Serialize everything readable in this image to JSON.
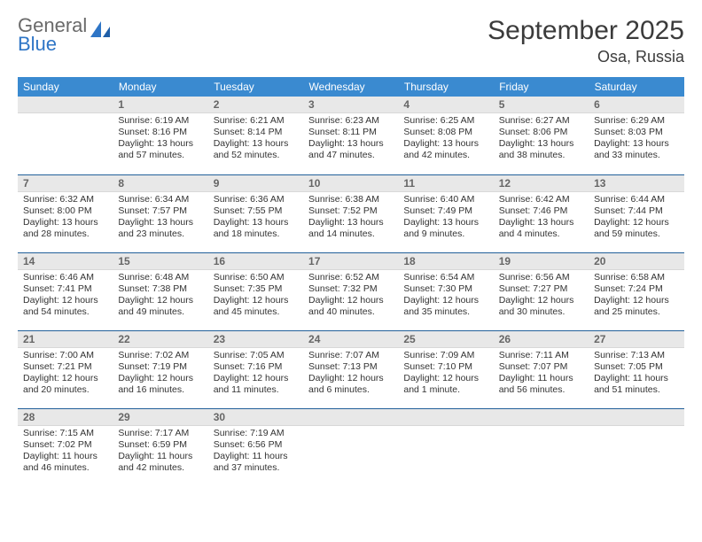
{
  "brand": {
    "line1": "General",
    "line2": "Blue",
    "color_gray": "#6a6a6a",
    "color_blue": "#2e75c6"
  },
  "title": "September 2025",
  "location": "Osa, Russia",
  "header_bg": "#3a8ad0",
  "header_text_color": "#ffffff",
  "daynum_bg": "#e8e8e8",
  "daynum_color": "#666666",
  "rule_color": "#22609a",
  "body_text_color": "#333333",
  "font_family": "Arial, Helvetica, sans-serif",
  "daynum_fontsize": 12,
  "body_fontsize": 10.5,
  "weekdays": [
    "Sunday",
    "Monday",
    "Tuesday",
    "Wednesday",
    "Thursday",
    "Friday",
    "Saturday"
  ],
  "weeks": [
    [
      null,
      {
        "n": "1",
        "sr": "Sunrise: 6:19 AM",
        "ss": "Sunset: 8:16 PM",
        "dl": "Daylight: 13 hours and 57 minutes."
      },
      {
        "n": "2",
        "sr": "Sunrise: 6:21 AM",
        "ss": "Sunset: 8:14 PM",
        "dl": "Daylight: 13 hours and 52 minutes."
      },
      {
        "n": "3",
        "sr": "Sunrise: 6:23 AM",
        "ss": "Sunset: 8:11 PM",
        "dl": "Daylight: 13 hours and 47 minutes."
      },
      {
        "n": "4",
        "sr": "Sunrise: 6:25 AM",
        "ss": "Sunset: 8:08 PM",
        "dl": "Daylight: 13 hours and 42 minutes."
      },
      {
        "n": "5",
        "sr": "Sunrise: 6:27 AM",
        "ss": "Sunset: 8:06 PM",
        "dl": "Daylight: 13 hours and 38 minutes."
      },
      {
        "n": "6",
        "sr": "Sunrise: 6:29 AM",
        "ss": "Sunset: 8:03 PM",
        "dl": "Daylight: 13 hours and 33 minutes."
      }
    ],
    [
      {
        "n": "7",
        "sr": "Sunrise: 6:32 AM",
        "ss": "Sunset: 8:00 PM",
        "dl": "Daylight: 13 hours and 28 minutes."
      },
      {
        "n": "8",
        "sr": "Sunrise: 6:34 AM",
        "ss": "Sunset: 7:57 PM",
        "dl": "Daylight: 13 hours and 23 minutes."
      },
      {
        "n": "9",
        "sr": "Sunrise: 6:36 AM",
        "ss": "Sunset: 7:55 PM",
        "dl": "Daylight: 13 hours and 18 minutes."
      },
      {
        "n": "10",
        "sr": "Sunrise: 6:38 AM",
        "ss": "Sunset: 7:52 PM",
        "dl": "Daylight: 13 hours and 14 minutes."
      },
      {
        "n": "11",
        "sr": "Sunrise: 6:40 AM",
        "ss": "Sunset: 7:49 PM",
        "dl": "Daylight: 13 hours and 9 minutes."
      },
      {
        "n": "12",
        "sr": "Sunrise: 6:42 AM",
        "ss": "Sunset: 7:46 PM",
        "dl": "Daylight: 13 hours and 4 minutes."
      },
      {
        "n": "13",
        "sr": "Sunrise: 6:44 AM",
        "ss": "Sunset: 7:44 PM",
        "dl": "Daylight: 12 hours and 59 minutes."
      }
    ],
    [
      {
        "n": "14",
        "sr": "Sunrise: 6:46 AM",
        "ss": "Sunset: 7:41 PM",
        "dl": "Daylight: 12 hours and 54 minutes."
      },
      {
        "n": "15",
        "sr": "Sunrise: 6:48 AM",
        "ss": "Sunset: 7:38 PM",
        "dl": "Daylight: 12 hours and 49 minutes."
      },
      {
        "n": "16",
        "sr": "Sunrise: 6:50 AM",
        "ss": "Sunset: 7:35 PM",
        "dl": "Daylight: 12 hours and 45 minutes."
      },
      {
        "n": "17",
        "sr": "Sunrise: 6:52 AM",
        "ss": "Sunset: 7:32 PM",
        "dl": "Daylight: 12 hours and 40 minutes."
      },
      {
        "n": "18",
        "sr": "Sunrise: 6:54 AM",
        "ss": "Sunset: 7:30 PM",
        "dl": "Daylight: 12 hours and 35 minutes."
      },
      {
        "n": "19",
        "sr": "Sunrise: 6:56 AM",
        "ss": "Sunset: 7:27 PM",
        "dl": "Daylight: 12 hours and 30 minutes."
      },
      {
        "n": "20",
        "sr": "Sunrise: 6:58 AM",
        "ss": "Sunset: 7:24 PM",
        "dl": "Daylight: 12 hours and 25 minutes."
      }
    ],
    [
      {
        "n": "21",
        "sr": "Sunrise: 7:00 AM",
        "ss": "Sunset: 7:21 PM",
        "dl": "Daylight: 12 hours and 20 minutes."
      },
      {
        "n": "22",
        "sr": "Sunrise: 7:02 AM",
        "ss": "Sunset: 7:19 PM",
        "dl": "Daylight: 12 hours and 16 minutes."
      },
      {
        "n": "23",
        "sr": "Sunrise: 7:05 AM",
        "ss": "Sunset: 7:16 PM",
        "dl": "Daylight: 12 hours and 11 minutes."
      },
      {
        "n": "24",
        "sr": "Sunrise: 7:07 AM",
        "ss": "Sunset: 7:13 PM",
        "dl": "Daylight: 12 hours and 6 minutes."
      },
      {
        "n": "25",
        "sr": "Sunrise: 7:09 AM",
        "ss": "Sunset: 7:10 PM",
        "dl": "Daylight: 12 hours and 1 minute."
      },
      {
        "n": "26",
        "sr": "Sunrise: 7:11 AM",
        "ss": "Sunset: 7:07 PM",
        "dl": "Daylight: 11 hours and 56 minutes."
      },
      {
        "n": "27",
        "sr": "Sunrise: 7:13 AM",
        "ss": "Sunset: 7:05 PM",
        "dl": "Daylight: 11 hours and 51 minutes."
      }
    ],
    [
      {
        "n": "28",
        "sr": "Sunrise: 7:15 AM",
        "ss": "Sunset: 7:02 PM",
        "dl": "Daylight: 11 hours and 46 minutes."
      },
      {
        "n": "29",
        "sr": "Sunrise: 7:17 AM",
        "ss": "Sunset: 6:59 PM",
        "dl": "Daylight: 11 hours and 42 minutes."
      },
      {
        "n": "30",
        "sr": "Sunrise: 7:19 AM",
        "ss": "Sunset: 6:56 PM",
        "dl": "Daylight: 11 hours and 37 minutes."
      },
      null,
      null,
      null,
      null
    ]
  ]
}
